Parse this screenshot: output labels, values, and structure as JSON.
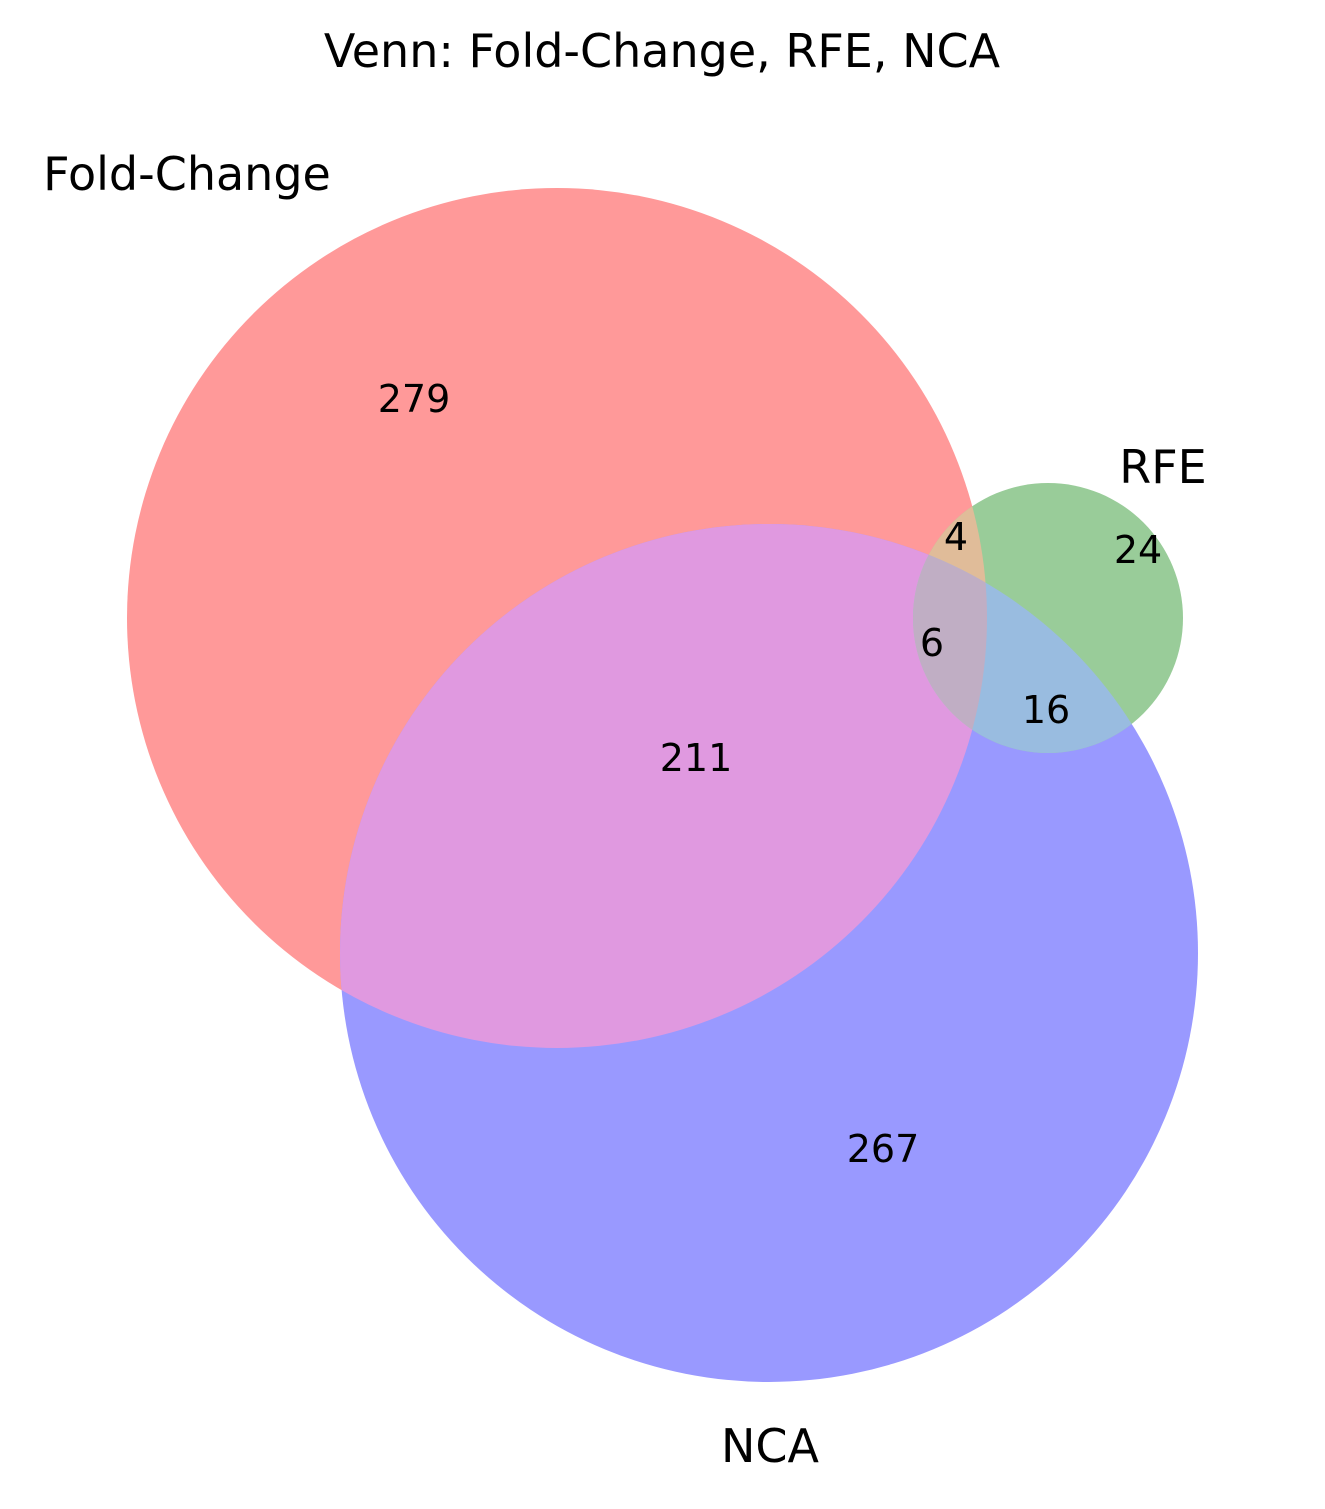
{
  "chart_data": {
    "type": "venn",
    "title": "Venn: Fold-Change, RFE, NCA",
    "sets": [
      {
        "name": "Fold-Change",
        "color": "#ff9999"
      },
      {
        "name": "RFE",
        "color": "#99cc99"
      },
      {
        "name": "NCA",
        "color": "#9999ff"
      }
    ],
    "regions": {
      "fold_change_only": 279,
      "rfe_only": 24,
      "nca_only": 267,
      "fold_change_and_rfe": 4,
      "fold_change_and_nca": 211,
      "rfe_and_nca": 16,
      "all_three": 6
    },
    "region_colors": {
      "fold_change_and_rfe": "#e0bc99",
      "fold_change_and_nca": "#e099e0",
      "rfe_and_nca": "#99bce0",
      "all_three": "#c0aec4"
    }
  }
}
